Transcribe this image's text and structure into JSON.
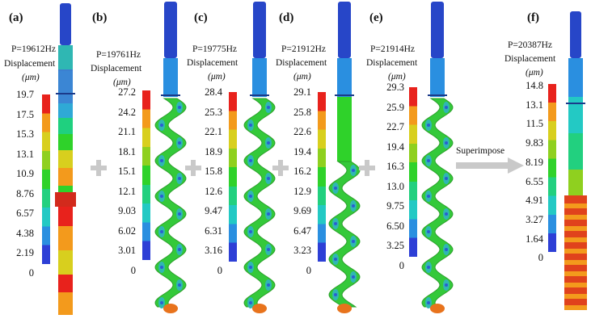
{
  "panels": [
    {
      "label": "(a)",
      "frequency": "P=19612Hz",
      "displacement": "Displacement",
      "unit": "(μm)",
      "ticks": [
        "19.7",
        "17.5",
        "15.3",
        "13.1",
        "10.9",
        "8.76",
        "6.57",
        "4.38",
        "2.19",
        "0"
      ],
      "shape": "straight"
    },
    {
      "label": "(b)",
      "frequency": "P=19761Hz",
      "displacement": "Displacement",
      "unit": "(μm)",
      "ticks": [
        "27.2",
        "24.2",
        "21.1",
        "18.1",
        "15.1",
        "12.1",
        "9.03",
        "6.02",
        "3.01",
        "0"
      ],
      "shape": "helix"
    },
    {
      "label": "(c)",
      "frequency": "P=19775Hz",
      "displacement": "Displacement",
      "unit": "(μm)",
      "ticks": [
        "28.4",
        "25.3",
        "22.1",
        "18.9",
        "15.8",
        "12.6",
        "9.47",
        "6.31",
        "3.16",
        "0"
      ],
      "shape": "helix"
    },
    {
      "label": "(d)",
      "frequency": "P=21912Hz",
      "displacement": "Displacement",
      "unit": "(μm)",
      "ticks": [
        "29.1",
        "25.8",
        "22.6",
        "19.4",
        "16.2",
        "12.9",
        "9.69",
        "6.47",
        "3.23",
        "0"
      ],
      "shape": "helix-lower"
    },
    {
      "label": "(e)",
      "frequency": "P=21914Hz",
      "displacement": "Displacement",
      "unit": "(μm)",
      "ticks": [
        "29.3",
        "25.9",
        "22.7",
        "19.4",
        "16.3",
        "13.0",
        "9.75",
        "6.50",
        "3.25",
        "0"
      ],
      "shape": "helix"
    },
    {
      "label": "(f)",
      "frequency": "P=20387Hz",
      "displacement": "Displacement",
      "unit": "(μm)",
      "ticks": [
        "14.8",
        "13.1",
        "11.5",
        "9.83",
        "8.19",
        "6.55",
        "4.91",
        "3.27",
        "1.64",
        "0"
      ],
      "shape": "straight-f"
    }
  ],
  "superimpose_label": "Superimpose",
  "colors": {
    "scale": [
      "#e8221c",
      "#f39a1c",
      "#d8cf1e",
      "#8fd01f",
      "#2fd22a",
      "#22d07f",
      "#23c9c4",
      "#2a8fe0",
      "#2d3fd6"
    ],
    "cap": "#2746c8",
    "plus": "#c9c9c9",
    "arrow": "#c9c9c9"
  }
}
